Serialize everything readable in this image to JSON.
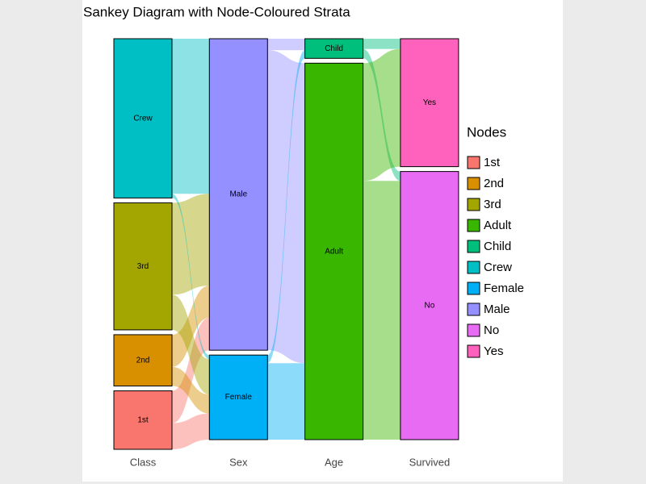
{
  "chart_data": {
    "type": "sankey",
    "title": "Sankey Diagram with Node-Coloured Strata",
    "axes": [
      "Class",
      "Sex",
      "Age",
      "Survived"
    ],
    "legend_title": "Nodes",
    "nodes": [
      {
        "name": "1st",
        "axis": "Class",
        "value": 325,
        "color": "#F8766D"
      },
      {
        "name": "2nd",
        "axis": "Class",
        "value": 285,
        "color": "#D89000"
      },
      {
        "name": "3rd",
        "axis": "Class",
        "value": 706,
        "color": "#A3A500"
      },
      {
        "name": "Adult",
        "axis": "Age",
        "value": 2092,
        "color": "#39B600"
      },
      {
        "name": "Child",
        "axis": "Age",
        "value": 109,
        "color": "#00BF7D"
      },
      {
        "name": "Crew",
        "axis": "Class",
        "value": 885,
        "color": "#00BFC4"
      },
      {
        "name": "Female",
        "axis": "Sex",
        "value": 470,
        "color": "#00B0F6"
      },
      {
        "name": "Male",
        "axis": "Sex",
        "value": 1731,
        "color": "#9590FF"
      },
      {
        "name": "No",
        "axis": "Survived",
        "value": 1490,
        "color": "#E76BF3"
      },
      {
        "name": "Yes",
        "axis": "Survived",
        "value": 711,
        "color": "#FF62BC"
      }
    ],
    "flows": [
      {
        "source": "1st",
        "target": "Male",
        "value": 180
      },
      {
        "source": "1st",
        "target": "Female",
        "value": 145
      },
      {
        "source": "2nd",
        "target": "Male",
        "value": 179
      },
      {
        "source": "2nd",
        "target": "Female",
        "value": 106
      },
      {
        "source": "3rd",
        "target": "Male",
        "value": 510
      },
      {
        "source": "3rd",
        "target": "Female",
        "value": 196
      },
      {
        "source": "Crew",
        "target": "Male",
        "value": 862
      },
      {
        "source": "Crew",
        "target": "Female",
        "value": 23
      },
      {
        "source": "Male",
        "target": "Child",
        "value": 64
      },
      {
        "source": "Male",
        "target": "Adult",
        "value": 1667
      },
      {
        "source": "Female",
        "target": "Child",
        "value": 45
      },
      {
        "source": "Female",
        "target": "Adult",
        "value": 425
      },
      {
        "source": "Child",
        "target": "No",
        "value": 52
      },
      {
        "source": "Child",
        "target": "Yes",
        "value": 57
      },
      {
        "source": "Adult",
        "target": "No",
        "value": 1438
      },
      {
        "source": "Adult",
        "target": "Yes",
        "value": 654
      }
    ]
  }
}
